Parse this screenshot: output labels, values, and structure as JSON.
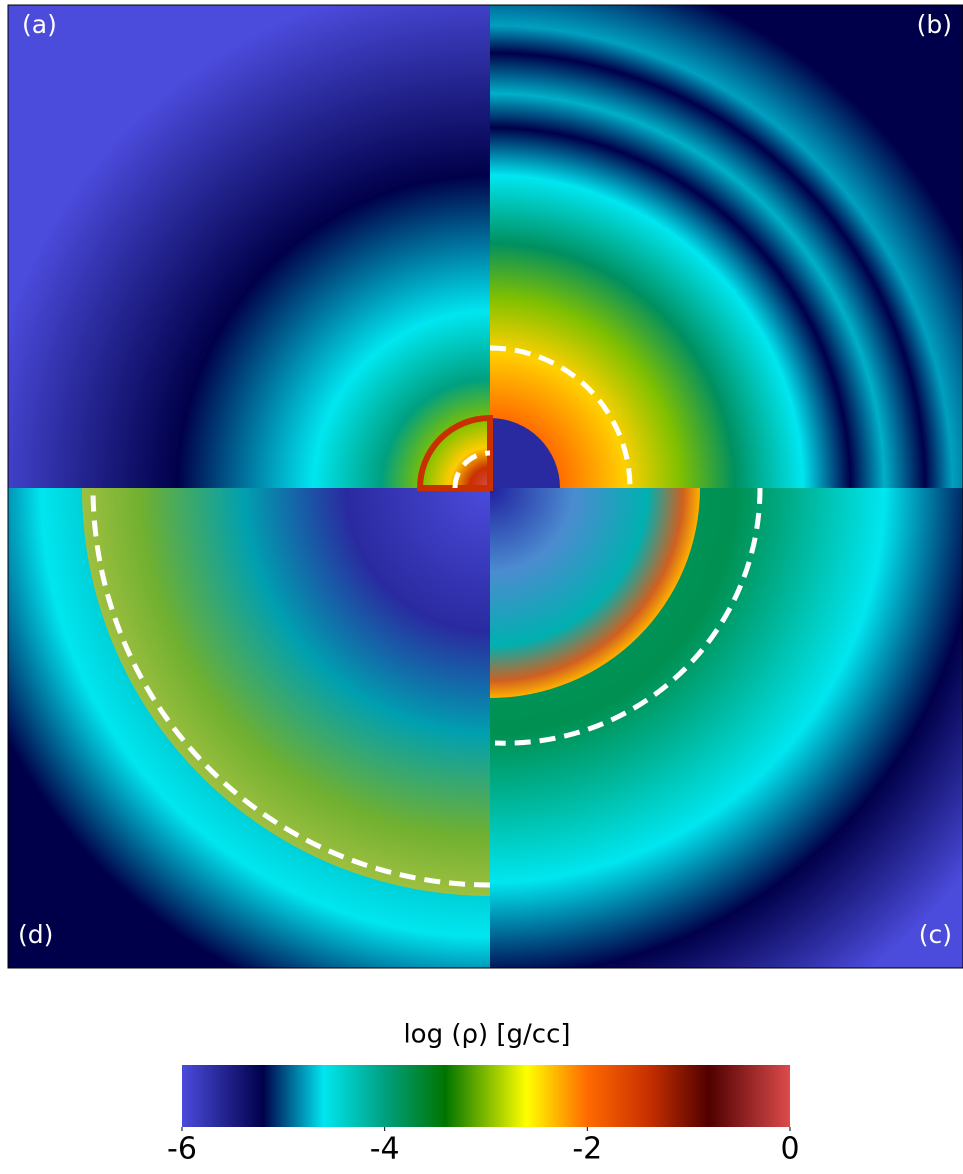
{
  "chart_data": {
    "type": "colormap-figure",
    "panels": [
      "(a)",
      "(b)",
      "(c)",
      "(d)"
    ],
    "colorbar_label": "log (ρ) [g/cc]",
    "xlim": [
      -6,
      0
    ],
    "xticks": [
      -6,
      -4,
      -2,
      0
    ],
    "colormap": [
      {
        "value": -6,
        "color": "#4b4bdc"
      },
      {
        "value": -5.2,
        "color": "#00004a"
      },
      {
        "value": -4.6,
        "color": "#00e6f0"
      },
      {
        "value": -4,
        "color": "#00a080"
      },
      {
        "value": -3.4,
        "color": "#007400"
      },
      {
        "value": -2.6,
        "color": "#ffff00"
      },
      {
        "value": -2,
        "color": "#ff6a00"
      },
      {
        "value": -1.4,
        "color": "#c83000"
      },
      {
        "value": -0.8,
        "color": "#500000"
      },
      {
        "value": 0,
        "color": "#dc4b4b"
      }
    ]
  }
}
